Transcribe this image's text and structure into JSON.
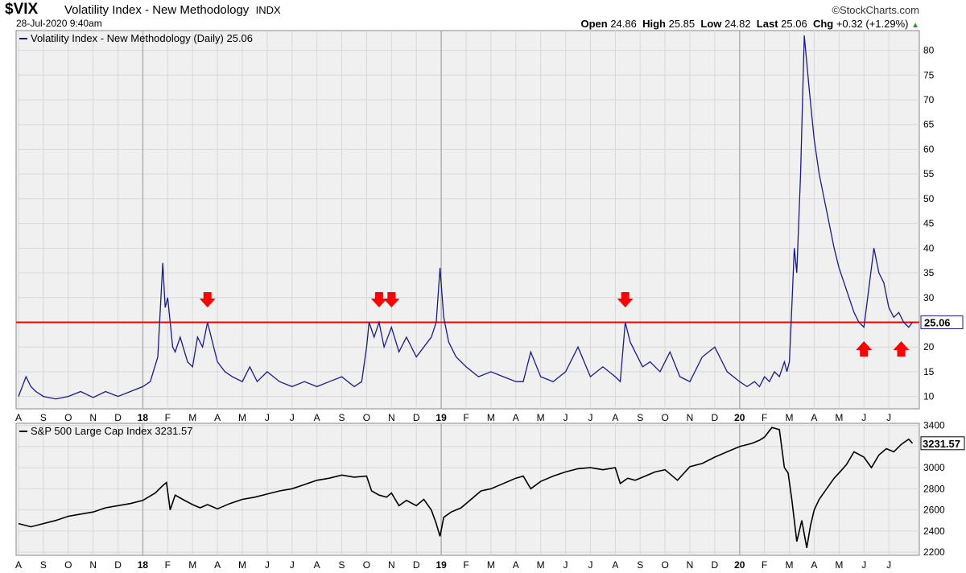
{
  "header": {
    "symbol": "$VIX",
    "name": "Volatility Index - New Methodology",
    "exchange": "INDX",
    "datetime": "28-Jul-2020 9:40am",
    "brand": "©StockCharts.com",
    "open_label": "Open",
    "open": "24.86",
    "high_label": "High",
    "high": "25.85",
    "low_label": "Low",
    "low": "24.82",
    "last_label": "Last",
    "last": "25.06",
    "chg_label": "Chg",
    "chg": "+0.32 (+1.29%)"
  },
  "colors": {
    "vix": "#1a1a8c",
    "spx": "#000000",
    "hline": "#ff0000",
    "arrow": "#ff0000",
    "grid": "#d8d8d8",
    "pane_bg": "#f0f0f0"
  },
  "chart_data": [
    {
      "type": "line",
      "legend": "Volatility Index - New Methodology (Daily) 25.06",
      "last_value_label": "25.06",
      "x_tick_labels": [
        "A",
        "S",
        "O",
        "N",
        "D",
        "18",
        "F",
        "M",
        "A",
        "M",
        "J",
        "J",
        "A",
        "S",
        "O",
        "N",
        "D",
        "19",
        "F",
        "M",
        "A",
        "M",
        "J",
        "J",
        "A",
        "S",
        "O",
        "N",
        "D",
        "20",
        "F",
        "M",
        "A",
        "M",
        "J",
        "J"
      ],
      "y_ticks": [
        10,
        15,
        20,
        25,
        30,
        35,
        40,
        45,
        50,
        55,
        60,
        65,
        70,
        75,
        80
      ],
      "ylim": [
        7.5,
        84
      ],
      "reference_line": 25,
      "arrows_down_months": [
        7.6,
        14.5,
        15.0,
        24.4
      ],
      "arrows_up_months": [
        34.0,
        35.5
      ],
      "x_months": [
        0,
        0.3,
        0.5,
        0.7,
        1,
        1.5,
        2,
        2.5,
        3,
        3.5,
        4,
        4.5,
        5,
        5.3,
        5.6,
        5.8,
        5.9,
        6.0,
        6.1,
        6.2,
        6.3,
        6.5,
        6.8,
        7,
        7.2,
        7.4,
        7.6,
        7.8,
        8,
        8.3,
        8.6,
        9,
        9.3,
        9.6,
        10,
        10.5,
        11,
        11.5,
        12,
        12.5,
        13,
        13.5,
        13.8,
        14,
        14.1,
        14.3,
        14.5,
        14.7,
        15,
        15.3,
        15.6,
        16,
        16.3,
        16.6,
        16.8,
        16.95,
        17.1,
        17.3,
        17.6,
        18,
        18.5,
        19,
        19.5,
        20,
        20.3,
        20.6,
        21,
        21.5,
        22,
        22.5,
        23,
        23.5,
        24,
        24.2,
        24.4,
        24.6,
        24.8,
        25.1,
        25.4,
        25.8,
        26.2,
        26.6,
        27,
        27.5,
        28,
        28.5,
        29,
        29.3,
        29.6,
        29.8,
        30.0,
        30.2,
        30.4,
        30.6,
        30.8,
        30.9,
        31.0,
        31.1,
        31.2,
        31.3,
        31.45,
        31.6,
        31.8,
        32.0,
        32.2,
        32.4,
        32.6,
        32.8,
        33.0,
        33.2,
        33.4,
        33.6,
        33.8,
        34.0,
        34.2,
        34.4,
        34.6,
        34.8,
        35.0,
        35.2,
        35.4,
        35.6,
        35.8,
        35.95
      ],
      "values": [
        10,
        14,
        12,
        11,
        10,
        9.5,
        10,
        11,
        9.8,
        11,
        10,
        11,
        12,
        13,
        18,
        37,
        28,
        30,
        25,
        20,
        19,
        22,
        17,
        16,
        22,
        20,
        25,
        21,
        17,
        15,
        14,
        13,
        16,
        13,
        15,
        13,
        12,
        13,
        12,
        13,
        14,
        12,
        13,
        20,
        25,
        22,
        25,
        20,
        24,
        19,
        22,
        18,
        20,
        22,
        25,
        36,
        26,
        21,
        18,
        16,
        14,
        15,
        14,
        13,
        13,
        19,
        14,
        13,
        15,
        20,
        14,
        16,
        14,
        13,
        25,
        21,
        19,
        16,
        17,
        15,
        19,
        14,
        13,
        18,
        20,
        15,
        13,
        12,
        13,
        12,
        14,
        13,
        15,
        14,
        17,
        15,
        17,
        28,
        40,
        35,
        55,
        83,
        72,
        62,
        55,
        50,
        45,
        40,
        36,
        33,
        30,
        27,
        25,
        24,
        32,
        40,
        35,
        33,
        28,
        26,
        27,
        25,
        24,
        25
      ]
    },
    {
      "type": "line",
      "legend": "S&P 500 Large Cap Index 3231.57",
      "last_value_label": "3231.57",
      "x_tick_labels": [
        "A",
        "S",
        "O",
        "N",
        "D",
        "18",
        "F",
        "M",
        "A",
        "M",
        "J",
        "J",
        "A",
        "S",
        "O",
        "N",
        "D",
        "19",
        "F",
        "M",
        "A",
        "M",
        "J",
        "J",
        "A",
        "S",
        "O",
        "N",
        "D",
        "20",
        "F",
        "M",
        "A",
        "M",
        "J",
        "J"
      ],
      "y_ticks": [
        2200,
        2400,
        2600,
        2800,
        3000,
        3200,
        3400
      ],
      "ylim": [
        2170,
        3420
      ],
      "x_months": [
        0,
        0.5,
        1,
        1.5,
        2,
        2.5,
        3,
        3.5,
        4,
        4.5,
        5,
        5.5,
        5.8,
        5.95,
        6.1,
        6.3,
        6.6,
        7,
        7.3,
        7.6,
        8,
        8.5,
        9,
        9.5,
        10,
        10.5,
        11,
        11.5,
        12,
        12.5,
        13,
        13.5,
        14,
        14.2,
        14.5,
        14.8,
        15,
        15.3,
        15.6,
        16,
        16.3,
        16.6,
        16.8,
        16.95,
        17.1,
        17.4,
        17.8,
        18.2,
        18.6,
        19,
        19.5,
        20,
        20.3,
        20.6,
        21,
        21.5,
        22,
        22.5,
        23,
        23.5,
        24,
        24.2,
        24.5,
        24.8,
        25.2,
        25.6,
        26,
        26.5,
        27,
        27.5,
        28,
        28.5,
        29,
        29.5,
        29.8,
        30,
        30.3,
        30.6,
        30.8,
        30.95,
        31.1,
        31.3,
        31.5,
        31.7,
        31.85,
        32,
        32.2,
        32.5,
        32.8,
        33,
        33.3,
        33.6,
        34,
        34.3,
        34.6,
        34.9,
        35.2,
        35.5,
        35.8,
        35.95
      ],
      "values": [
        2470,
        2440,
        2470,
        2500,
        2540,
        2560,
        2580,
        2620,
        2640,
        2660,
        2690,
        2760,
        2830,
        2860,
        2600,
        2740,
        2700,
        2650,
        2620,
        2650,
        2610,
        2660,
        2700,
        2720,
        2750,
        2780,
        2800,
        2840,
        2880,
        2900,
        2930,
        2910,
        2920,
        2780,
        2740,
        2720,
        2760,
        2640,
        2690,
        2640,
        2700,
        2600,
        2470,
        2350,
        2530,
        2580,
        2620,
        2700,
        2780,
        2800,
        2850,
        2900,
        2920,
        2800,
        2870,
        2920,
        2960,
        2990,
        3000,
        2980,
        3000,
        2850,
        2900,
        2880,
        2920,
        2960,
        2980,
        2880,
        3010,
        3040,
        3100,
        3150,
        3200,
        3230,
        3260,
        3290,
        3380,
        3360,
        3000,
        2950,
        2700,
        2300,
        2500,
        2240,
        2450,
        2600,
        2700,
        2800,
        2900,
        2950,
        3030,
        3150,
        3100,
        3000,
        3120,
        3180,
        3150,
        3220,
        3270,
        3231
      ]
    }
  ]
}
